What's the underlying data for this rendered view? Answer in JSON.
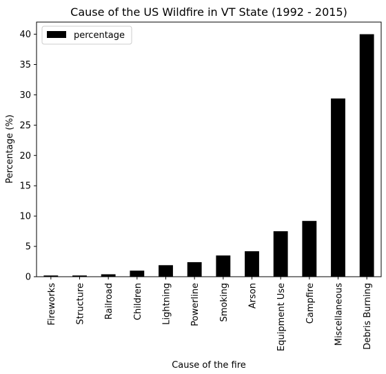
{
  "chart_data": {
    "type": "bar",
    "title": "Cause of the US Wildfire in VT State (1992 - 2015)",
    "xlabel": "Cause of the fire",
    "ylabel": "Percentage (%)",
    "categories": [
      "Fireworks",
      "Structure",
      "Railroad",
      "Children",
      "Lightning",
      "Powerline",
      "Smoking",
      "Arson",
      "Equipment Use",
      "Campfire",
      "Miscellaneous",
      "Debris Burning"
    ],
    "series": [
      {
        "name": "percentage",
        "color": "#000000",
        "values": [
          0.2,
          0.2,
          0.4,
          1.0,
          1.9,
          2.4,
          3.5,
          4.2,
          7.5,
          9.2,
          29.4,
          40.0
        ]
      }
    ],
    "ylim": [
      0,
      42
    ],
    "yticks": [
      0,
      5,
      10,
      15,
      20,
      25,
      30,
      35,
      40
    ],
    "grid": false,
    "legend_position": "top-left"
  }
}
